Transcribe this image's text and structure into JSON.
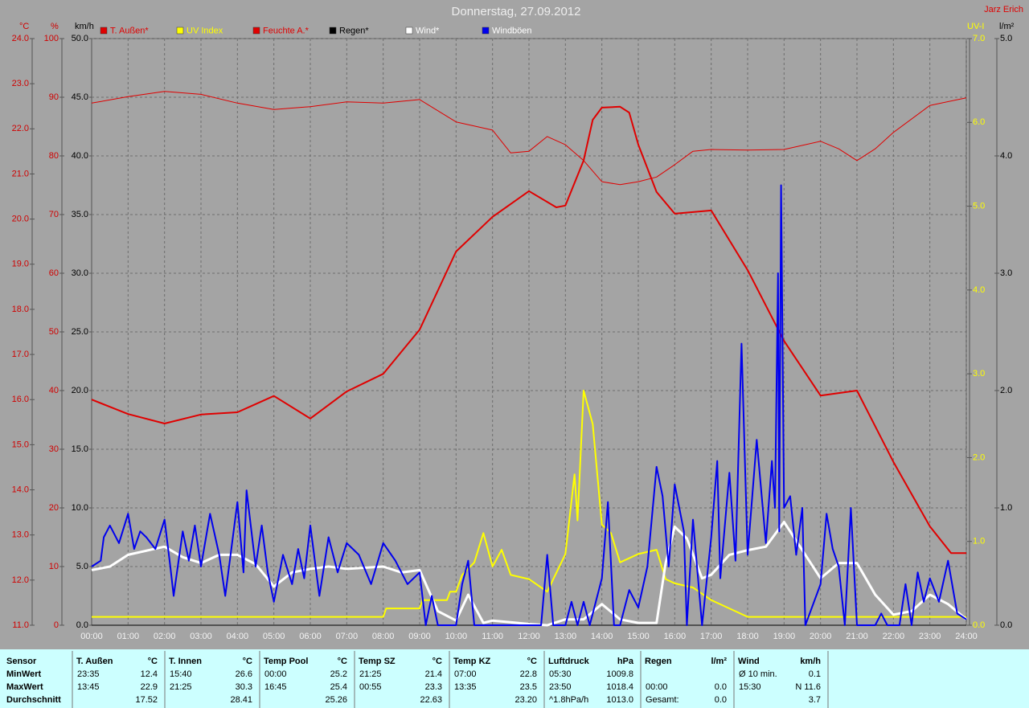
{
  "chart_data": {
    "type": "line",
    "title": "Donnerstag, 27.09.2012",
    "author": "Jarz Erich",
    "grid": true,
    "xlim": [
      0,
      1440
    ],
    "xticks": [
      {
        "value": 0,
        "label": "00:00"
      },
      {
        "value": 60,
        "label": "01:00"
      },
      {
        "value": 120,
        "label": "02:00"
      },
      {
        "value": 180,
        "label": "03:00"
      },
      {
        "value": 240,
        "label": "04:00"
      },
      {
        "value": 300,
        "label": "05:00"
      },
      {
        "value": 360,
        "label": "06:00"
      },
      {
        "value": 420,
        "label": "07:00"
      },
      {
        "value": 480,
        "label": "08:00"
      },
      {
        "value": 540,
        "label": "09:00"
      },
      {
        "value": 600,
        "label": "10:00"
      },
      {
        "value": 660,
        "label": "11:00"
      },
      {
        "value": 720,
        "label": "12:00"
      },
      {
        "value": 780,
        "label": "13:00"
      },
      {
        "value": 840,
        "label": "14:00"
      },
      {
        "value": 900,
        "label": "15:00"
      },
      {
        "value": 960,
        "label": "16:00"
      },
      {
        "value": 1020,
        "label": "17:00"
      },
      {
        "value": 1080,
        "label": "18:00"
      },
      {
        "value": 1140,
        "label": "19:00"
      },
      {
        "value": 1200,
        "label": "20:00"
      },
      {
        "value": 1260,
        "label": "21:00"
      },
      {
        "value": 1320,
        "label": "22:00"
      },
      {
        "value": 1380,
        "label": "23:00"
      },
      {
        "value": 1440,
        "label": "24:00"
      }
    ],
    "axes": [
      {
        "id": "c",
        "label": "°C",
        "color": "#d00000",
        "side": "left",
        "lim": [
          11,
          24
        ],
        "ticks": [
          {
            "value": 11,
            "label": "11.0"
          },
          {
            "value": 12,
            "label": "12.0"
          },
          {
            "value": 13,
            "label": "13.0"
          },
          {
            "value": 14,
            "label": "14.0"
          },
          {
            "value": 15,
            "label": "15.0"
          },
          {
            "value": 16,
            "label": "16.0"
          },
          {
            "value": 17,
            "label": "17.0"
          },
          {
            "value": 18,
            "label": "18.0"
          },
          {
            "value": 19,
            "label": "19.0"
          },
          {
            "value": 20,
            "label": "20.0"
          },
          {
            "value": 21,
            "label": "21.0"
          },
          {
            "value": 22,
            "label": "22.0"
          },
          {
            "value": 23,
            "label": "23.0"
          },
          {
            "value": 24,
            "label": "24.0"
          }
        ]
      },
      {
        "id": "pct",
        "label": "%",
        "color": "#d00000",
        "side": "left",
        "lim": [
          0,
          100
        ],
        "ticks": [
          0,
          10,
          20,
          30,
          40,
          50,
          60,
          70,
          80,
          90,
          100
        ]
      },
      {
        "id": "kmh",
        "label": "km/h",
        "color": "#000000",
        "side": "left",
        "lim": [
          0,
          50
        ],
        "grid": true,
        "ticks": [
          {
            "value": 0,
            "label": "0.0"
          },
          {
            "value": 5,
            "label": "5.0"
          },
          {
            "value": 10,
            "label": "10.0"
          },
          {
            "value": 15,
            "label": "15.0"
          },
          {
            "value": 20,
            "label": "20.0"
          },
          {
            "value": 25,
            "label": "25.0"
          },
          {
            "value": 30,
            "label": "30.0"
          },
          {
            "value": 35,
            "label": "35.0"
          },
          {
            "value": 40,
            "label": "40.0"
          },
          {
            "value": 45,
            "label": "45.0"
          },
          {
            "value": 50,
            "label": "50.0"
          }
        ]
      },
      {
        "id": "uv",
        "label": "UV-I",
        "color": "#ffff00",
        "side": "right",
        "lim": [
          0,
          7
        ],
        "ticks": [
          {
            "value": 0,
            "label": "0.0"
          },
          {
            "value": 1,
            "label": "1.0"
          },
          {
            "value": 2,
            "label": "2.0"
          },
          {
            "value": 3,
            "label": "3.0"
          },
          {
            "value": 4,
            "label": "4.0"
          },
          {
            "value": 5,
            "label": "5.0"
          },
          {
            "value": 6,
            "label": "6.0"
          },
          {
            "value": 7,
            "label": "7.0"
          }
        ]
      },
      {
        "id": "rain",
        "label": "l/m²",
        "color": "#000000",
        "side": "right",
        "lim": [
          0,
          5
        ],
        "ticks": [
          {
            "value": 0,
            "label": "0.0"
          },
          {
            "value": 1,
            "label": "1.0"
          },
          {
            "value": 2,
            "label": "2.0"
          },
          {
            "value": 3,
            "label": "3.0"
          },
          {
            "value": 4,
            "label": "4.0"
          },
          {
            "value": 5,
            "label": "5.0"
          }
        ]
      }
    ],
    "series": [
      {
        "name": "T. Außen*",
        "color": "#e00000",
        "label_color": "#e00000",
        "axis": "c",
        "width": 2,
        "x": [
          0,
          60,
          120,
          180,
          240,
          300,
          360,
          420,
          480,
          540,
          600,
          660,
          720,
          765,
          780,
          810,
          825,
          840,
          870,
          885,
          900,
          930,
          960,
          1020,
          1080,
          1140,
          1200,
          1260,
          1320,
          1380,
          1415,
          1440
        ],
        "values": [
          16.0,
          15.68,
          15.47,
          15.67,
          15.72,
          16.08,
          15.58,
          16.18,
          16.57,
          17.55,
          19.28,
          20.05,
          20.62,
          20.26,
          20.3,
          21.3,
          22.2,
          22.47,
          22.49,
          22.36,
          21.65,
          20.6,
          20.12,
          20.19,
          18.87,
          17.3,
          16.09,
          16.2,
          14.62,
          13.19,
          12.6,
          12.6
        ]
      },
      {
        "name": "UV Index",
        "color": "#ffff00",
        "label_color": "#ffff00",
        "axis": "uv",
        "width": 2,
        "x": [
          0,
          480,
          485,
          540,
          545,
          585,
          590,
          600,
          610,
          630,
          645,
          660,
          675,
          690,
          720,
          750,
          780,
          795,
          800,
          810,
          825,
          840,
          855,
          870,
          900,
          930,
          945,
          960,
          990,
          1020,
          1050,
          1080,
          1440
        ],
        "values": [
          0.1,
          0.1,
          0.2,
          0.2,
          0.3,
          0.3,
          0.4,
          0.4,
          0.6,
          0.75,
          1.1,
          0.7,
          0.9,
          0.6,
          0.55,
          0.4,
          0.85,
          1.8,
          1.25,
          2.8,
          2.4,
          1.2,
          1.1,
          0.75,
          0.85,
          0.9,
          0.55,
          0.5,
          0.45,
          0.3,
          0.2,
          0.1,
          0.1
        ]
      },
      {
        "name": "Feuchte A.*",
        "color": "#e00000",
        "label_color": "#e00000",
        "axis": "pct",
        "width": 1,
        "x": [
          0,
          60,
          120,
          180,
          240,
          300,
          360,
          420,
          480,
          540,
          600,
          660,
          690,
          720,
          750,
          780,
          810,
          840,
          870,
          900,
          930,
          960,
          990,
          1020,
          1080,
          1140,
          1200,
          1230,
          1260,
          1290,
          1320,
          1380,
          1440
        ],
        "values": [
          89.0,
          90.1,
          91.0,
          90.5,
          89.0,
          87.9,
          88.4,
          89.2,
          89.0,
          89.6,
          85.8,
          84.4,
          80.5,
          80.8,
          83.3,
          81.9,
          79.2,
          75.6,
          75.1,
          75.6,
          76.4,
          78.5,
          80.8,
          81.1,
          81.0,
          81.1,
          82.5,
          81.2,
          79.2,
          81.2,
          84.0,
          88.6,
          89.9
        ]
      },
      {
        "name": "Regen*",
        "color": "#000000",
        "label_color": "#000000",
        "axis": "rain",
        "width": 1,
        "x": [
          0,
          1440
        ],
        "values": [
          0.0,
          0.0
        ]
      },
      {
        "name": "Wind*",
        "color": "#ffffff",
        "label_color": "#ffffff",
        "axis": "kmh",
        "width": 3,
        "x": [
          0,
          30,
          60,
          120,
          150,
          180,
          210,
          240,
          270,
          300,
          330,
          360,
          390,
          420,
          480,
          510,
          540,
          570,
          600,
          620,
          645,
          660,
          720,
          750,
          780,
          810,
          840,
          870,
          900,
          930,
          945,
          960,
          980,
          1005,
          1020,
          1050,
          1080,
          1110,
          1140,
          1170,
          1200,
          1230,
          1260,
          1290,
          1320,
          1350,
          1380,
          1410,
          1440
        ],
        "values": [
          4.7,
          5.0,
          6.0,
          6.7,
          5.8,
          5.3,
          6.0,
          6.0,
          5.2,
          3.3,
          4.5,
          4.8,
          5.0,
          4.8,
          5.0,
          4.5,
          4.7,
          1.2,
          0.4,
          2.6,
          0.2,
          0.4,
          0.1,
          0.0,
          0.5,
          0.5,
          1.8,
          0.5,
          0.2,
          0.2,
          5.3,
          8.4,
          7.4,
          4.0,
          4.3,
          6.0,
          6.4,
          6.7,
          8.8,
          6.4,
          4.0,
          5.3,
          5.3,
          2.6,
          0.9,
          1.2,
          2.6,
          1.8,
          0.5
        ]
      },
      {
        "name": "Windböen",
        "color": "#0000ee",
        "label_color": "#ffffff",
        "axis": "kmh",
        "width": 2,
        "x": [
          0,
          15,
          20,
          30,
          45,
          60,
          70,
          80,
          90,
          105,
          120,
          130,
          135,
          150,
          160,
          170,
          180,
          195,
          210,
          220,
          240,
          250,
          255,
          270,
          280,
          290,
          300,
          315,
          330,
          340,
          350,
          360,
          375,
          390,
          405,
          420,
          440,
          460,
          480,
          500,
          520,
          540,
          550,
          560,
          570,
          600,
          610,
          620,
          630,
          660,
          720,
          740,
          750,
          760,
          780,
          790,
          800,
          810,
          820,
          840,
          850,
          860,
          870,
          885,
          900,
          915,
          930,
          940,
          950,
          960,
          975,
          980,
          990,
          1005,
          1020,
          1030,
          1035,
          1050,
          1060,
          1070,
          1080,
          1095,
          1110,
          1120,
          1125,
          1130,
          1132,
          1135,
          1140,
          1150,
          1160,
          1170,
          1175,
          1200,
          1210,
          1220,
          1230,
          1240,
          1250,
          1260,
          1290,
          1300,
          1310,
          1330,
          1340,
          1350,
          1360,
          1370,
          1380,
          1395,
          1410,
          1425,
          1440
        ],
        "values": [
          5,
          5.5,
          7.5,
          8.5,
          7,
          9.5,
          6.5,
          8,
          7.5,
          6.5,
          9,
          4.8,
          2.5,
          8,
          5.5,
          8.5,
          5,
          9.5,
          6,
          2.5,
          10.5,
          4.5,
          11.5,
          5,
          8.5,
          4.5,
          2,
          6,
          3.5,
          6.5,
          4,
          8.5,
          2.5,
          7.5,
          4.5,
          7,
          6,
          3.5,
          7,
          5.5,
          3.5,
          4.5,
          0,
          2.5,
          0,
          0,
          3.5,
          5.5,
          0,
          0,
          0,
          0,
          6,
          0,
          0,
          2,
          0,
          2,
          0,
          4,
          10.5,
          0,
          0,
          3,
          1.5,
          5,
          13.5,
          11,
          5,
          12,
          8,
          0,
          9,
          0,
          7.5,
          14,
          4,
          13,
          5.5,
          24,
          6,
          15.8,
          7,
          14,
          10,
          30,
          8,
          37.5,
          10,
          11,
          6,
          10,
          0,
          3.5,
          9.5,
          6.5,
          5,
          0,
          10,
          0,
          0,
          1,
          0,
          0,
          3.5,
          0,
          4.5,
          2,
          4,
          2,
          5.5,
          1,
          0.5
        ]
      }
    ]
  },
  "stats": {
    "header": "Sensor",
    "row_labels": [
      "MinWert",
      "MaxWert",
      "Durchschnitt"
    ],
    "columns": [
      {
        "name": "T. Außen",
        "unit": "°C",
        "rows": [
          {
            "time": "23:35",
            "value": "12.4"
          },
          {
            "time": "13:45",
            "value": "22.9"
          },
          {
            "value": "17.52"
          }
        ]
      },
      {
        "name": "T. Innen",
        "unit": "°C",
        "rows": [
          {
            "time": "15:40",
            "value": "26.6"
          },
          {
            "time": "21:25",
            "value": "30.3"
          },
          {
            "value": "28.41"
          }
        ]
      },
      {
        "name": "Temp Pool",
        "unit": "°C",
        "rows": [
          {
            "time": "00:00",
            "value": "25.2"
          },
          {
            "time": "16:45",
            "value": "25.4"
          },
          {
            "value": "25.26"
          }
        ]
      },
      {
        "name": "Temp SZ",
        "unit": "°C",
        "rows": [
          {
            "time": "21:25",
            "value": "21.4"
          },
          {
            "time": "00:55",
            "value": "23.3"
          },
          {
            "value": "22.63"
          }
        ]
      },
      {
        "name": "Temp KZ",
        "unit": "°C",
        "rows": [
          {
            "time": "07:00",
            "value": "22.8"
          },
          {
            "time": "13:35",
            "value": "23.5"
          },
          {
            "value": "23.20"
          }
        ]
      },
      {
        "name": "Luftdruck",
        "unit": "hPa",
        "rows": [
          {
            "time": "05:30",
            "value": "1009.8"
          },
          {
            "time": "23:50",
            "value": "1018.4"
          },
          {
            "time": "^1.8hPa/h",
            "value": "1013.0"
          }
        ]
      },
      {
        "name": "Regen",
        "unit": "l/m²",
        "rows": [
          null,
          {
            "time": "00:00",
            "value": "0.0"
          },
          {
            "time": "Gesamt:",
            "value": "0.0"
          }
        ]
      },
      {
        "name": "Wind",
        "unit": "km/h",
        "rows": [
          {
            "time": "Ø 10 min.",
            "value": "0.1"
          },
          {
            "time": "15:30",
            "value": "N 11.6"
          },
          {
            "value": "3.7"
          }
        ]
      }
    ]
  }
}
